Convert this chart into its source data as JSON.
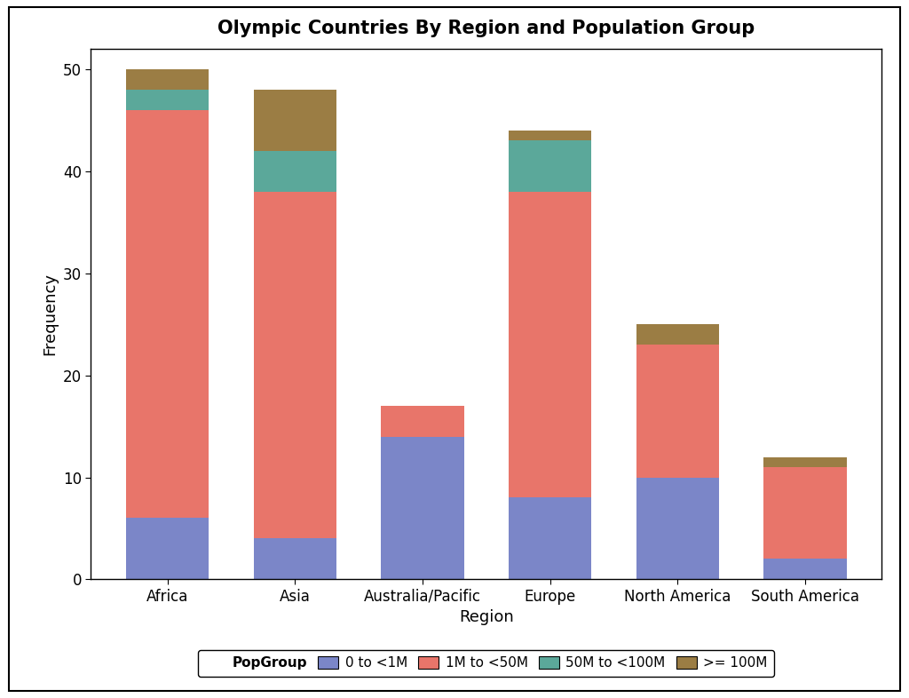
{
  "title": "Olympic Countries By Region and Population Group",
  "xlabel": "Region",
  "ylabel": "Frequency",
  "categories": [
    "Africa",
    "Asia",
    "Australia/Pacific",
    "Europe",
    "North America",
    "South America"
  ],
  "segments": {
    "0 to <1M": [
      6,
      4,
      14,
      8,
      10,
      2
    ],
    "1M to <50M": [
      40,
      34,
      3,
      30,
      13,
      9
    ],
    "50M to <100M": [
      2,
      4,
      0,
      5,
      0,
      0
    ],
    ">= 100M": [
      2,
      6,
      0,
      1,
      2,
      1
    ]
  },
  "colors": {
    "0 to <1M": "#7b86c8",
    "1M to <50M": "#e8756a",
    "50M to <100M": "#5ba89a",
    ">= 100M": "#9b7d44"
  },
  "legend_label": "PopGroup",
  "ylim": [
    0,
    52
  ],
  "yticks": [
    0,
    10,
    20,
    30,
    40,
    50
  ],
  "outer_bg_color": "#ffffff",
  "plot_bg_color": "#ffffff",
  "bar_width": 0.65,
  "title_fontsize": 15,
  "axis_fontsize": 13,
  "tick_fontsize": 12,
  "legend_fontsize": 11
}
